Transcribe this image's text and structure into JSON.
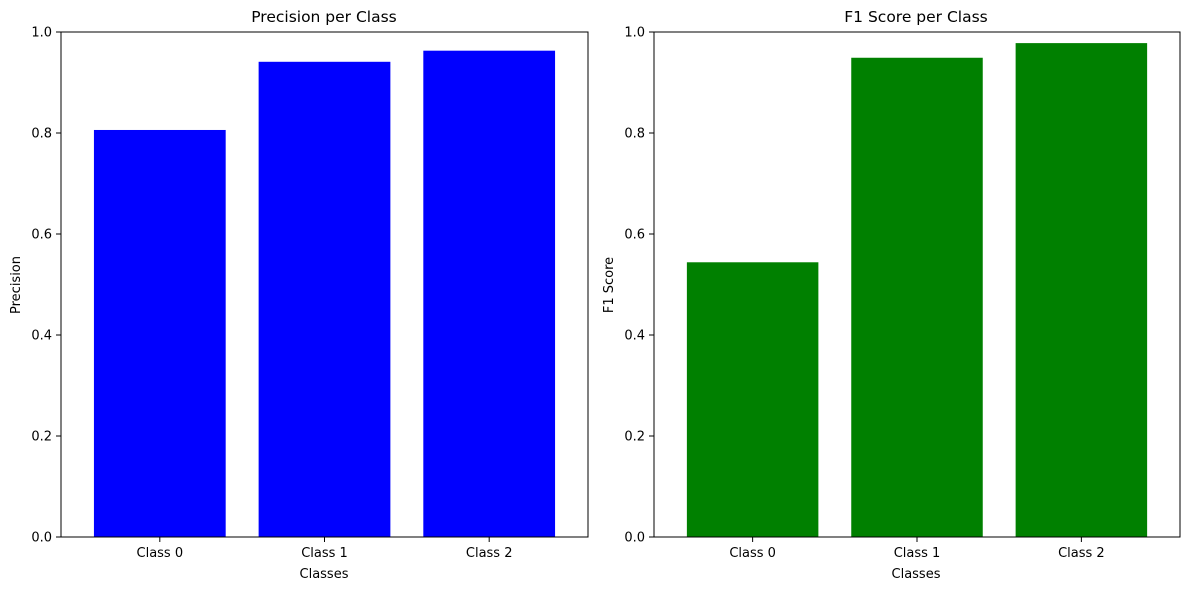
{
  "chart_data": [
    {
      "type": "bar",
      "title": "Precision per Class",
      "xlabel": "Classes",
      "ylabel": "Precision",
      "categories": [
        "Class 0",
        "Class 1",
        "Class 2"
      ],
      "values": [
        0.806,
        0.941,
        0.963
      ],
      "ylim": [
        0,
        1
      ],
      "yticks": [
        "0.0",
        "0.2",
        "0.4",
        "0.6",
        "0.8",
        "1.0"
      ],
      "color": "#0000ff",
      "grid": false,
      "legend": "none"
    },
    {
      "type": "bar",
      "title": "F1 Score per Class",
      "xlabel": "Classes",
      "ylabel": "F1 Score",
      "categories": [
        "Class 0",
        "Class 1",
        "Class 2"
      ],
      "values": [
        0.544,
        0.949,
        0.978
      ],
      "ylim": [
        0,
        1
      ],
      "yticks": [
        "0.0",
        "0.2",
        "0.4",
        "0.6",
        "0.8",
        "1.0"
      ],
      "color": "#008000",
      "grid": false,
      "legend": "none"
    }
  ]
}
